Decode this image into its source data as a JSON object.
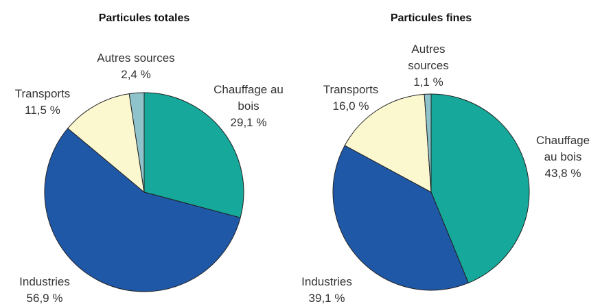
{
  "chart_data": [
    {
      "type": "pie",
      "title": "Particules totales",
      "categories": [
        "Chauffage au bois",
        "Industries",
        "Transports",
        "Autres sources"
      ],
      "values": [
        29.1,
        56.9,
        11.5,
        2.4
      ],
      "value_labels": [
        "29,1 %",
        "56,9 %",
        "11,5 %",
        "2,4 %"
      ],
      "colors": [
        "#16a89a",
        "#2058a8",
        "#fbf8d0",
        "#8fc3cc"
      ]
    },
    {
      "type": "pie",
      "title": "Particules fines",
      "categories": [
        "Chauffage au bois",
        "Industries",
        "Transports",
        "Autres sources"
      ],
      "values": [
        43.8,
        39.1,
        16.0,
        1.1
      ],
      "value_labels": [
        "43,8 %",
        "39,1 %",
        "16,0 %",
        "1,1 %"
      ],
      "colors": [
        "#16a89a",
        "#2058a8",
        "#fbf8d0",
        "#8fc3cc"
      ]
    }
  ]
}
